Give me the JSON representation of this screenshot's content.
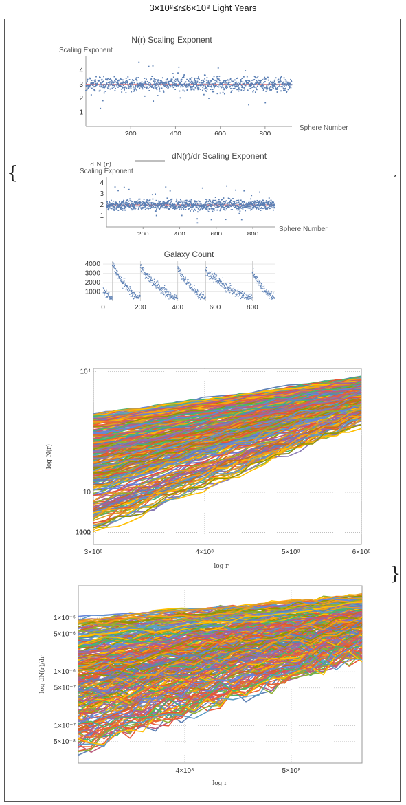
{
  "header": {
    "title": "3×10⁸≤r≤6×10⁸ Light Years"
  },
  "wrapper": {
    "open_brace": "{",
    "close_brace": "}",
    "separator": ","
  },
  "chart_data": [
    {
      "type": "scatter",
      "title": "N(r) Scaling Exponent",
      "xlabel": "Sphere Number",
      "ylabel": "Scaling Exponent",
      "xlim": [
        0,
        920
      ],
      "ylim": [
        0,
        5
      ],
      "xticks": [
        "200",
        "400",
        "600",
        "800"
      ],
      "yticks": [
        "1",
        "2",
        "3",
        "4"
      ],
      "point_count": 920,
      "mean": 3.0,
      "spread": 0.35,
      "reference_line": 3.0,
      "colors": {
        "points": "#5b7fb4",
        "reference": "#e36a6a"
      }
    },
    {
      "type": "scatter",
      "title": "dN(r)/dr Scaling Exponent",
      "xlabel": "Sphere Number",
      "ylabel": "Scaling Exponent",
      "xlim": [
        0,
        920
      ],
      "ylim": [
        0,
        4.5
      ],
      "xticks": [
        "200",
        "400",
        "600",
        "800"
      ],
      "yticks": [
        "1",
        "2",
        "3",
        "4"
      ],
      "point_count": 920,
      "mean": 2.0,
      "spread": 0.35,
      "reference_line": 2.0,
      "colors": {
        "points": "#5b7fb4",
        "reference": "#e36a6a"
      }
    },
    {
      "type": "scatter",
      "title": "Galaxy Count",
      "xlabel": "",
      "ylabel": "",
      "xlim": [
        0,
        920
      ],
      "ylim": [
        0,
        4300
      ],
      "xticks": [
        "0",
        "200",
        "400",
        "600",
        "800"
      ],
      "yticks": [
        "1000",
        "2000",
        "3000",
        "4000"
      ],
      "cycle_starts": [
        50,
        200,
        400,
        550,
        800
      ],
      "point_count": 920,
      "colors": {
        "points": "#5b7fb4"
      }
    },
    {
      "type": "line",
      "title": "",
      "xlabel": "log r",
      "ylabel": "log N(r)",
      "xscale": "log",
      "yscale": "log",
      "xlim": [
        300000000,
        600000000
      ],
      "ylim": [
        0.5,
        12000
      ],
      "xticks": [
        "3×10⁸",
        "4×10⁸",
        "5×10⁸",
        "6×10⁸"
      ],
      "yticks": [
        "1",
        "10",
        "100",
        "1000",
        "10⁴"
      ],
      "series_count": 300,
      "start_range": [
        1,
        900
      ],
      "end_range": [
        350,
        7000
      ],
      "grid": true,
      "palette": [
        "#5e81b5",
        "#e19c24",
        "#8fb032",
        "#eb6235",
        "#8778b3",
        "#c56e1a",
        "#5d9ec7",
        "#ffbf00",
        "#a5609d",
        "#929600",
        "#e95536",
        "#6685d9",
        "#f89f13",
        "#bc5b80",
        "#47b66d"
      ]
    },
    {
      "type": "line",
      "title": "",
      "xlabel": "log r",
      "ylabel": "log dN(r)/dr",
      "xscale": "log",
      "yscale": "log",
      "xlim": [
        320000000,
        580000000
      ],
      "ylim": [
        2e-08,
        4e-05
      ],
      "xticks": [
        "4×10⁸",
        "5×10⁸"
      ],
      "yticks": [
        "1×10⁻⁵",
        "5×10⁻⁶",
        "1×10⁻⁶",
        "5×10⁻⁷",
        "1×10⁻⁷",
        "5×10⁻⁸"
      ],
      "series_count": 300,
      "start_range": [
        3e-08,
        1e-05
      ],
      "end_range": [
        1.2e-06,
        2.5e-05
      ],
      "grid": true,
      "palette": [
        "#5e81b5",
        "#e19c24",
        "#8fb032",
        "#eb6235",
        "#8778b3",
        "#c56e1a",
        "#5d9ec7",
        "#ffbf00",
        "#a5609d",
        "#929600",
        "#e95536",
        "#6685d9",
        "#f89f13",
        "#bc5b80",
        "#47b66d"
      ]
    }
  ]
}
